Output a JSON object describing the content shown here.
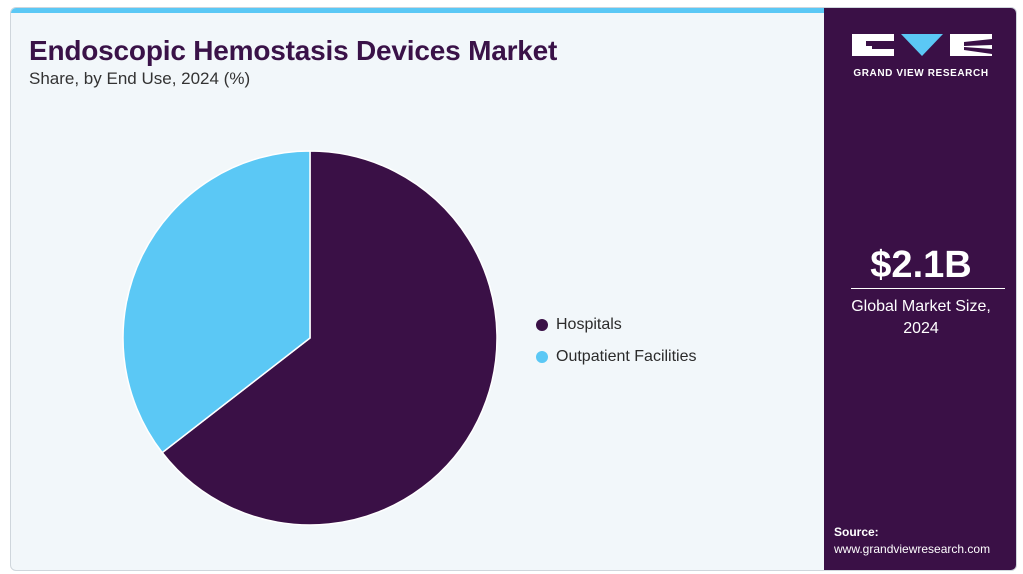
{
  "header": {
    "title": "Endoscopic Hemostasis Devices Market",
    "subtitle": "Share, by End Use, 2024 (%)"
  },
  "chart_data": {
    "type": "pie",
    "categories": [
      "Hospitals",
      "Outpatient Facilities"
    ],
    "values": [
      64.5,
      35.5
    ],
    "colors": [
      "#3a1046",
      "#5bc8f5"
    ],
    "legend_placement": "right",
    "start_angle_deg": 0,
    "direction": "clockwise"
  },
  "sidebar": {
    "brand": "GRAND VIEW RESEARCH",
    "logo_icon": "gvr-logo-icon",
    "market_value": "$2.1B",
    "market_label": "Global Market Size, 2024",
    "source_title": "Source:",
    "source_url": "www.grandviewresearch.com"
  },
  "colors": {
    "accent": "#5bc8f5",
    "brand": "#3a1046",
    "background": "#f2f7fa"
  }
}
